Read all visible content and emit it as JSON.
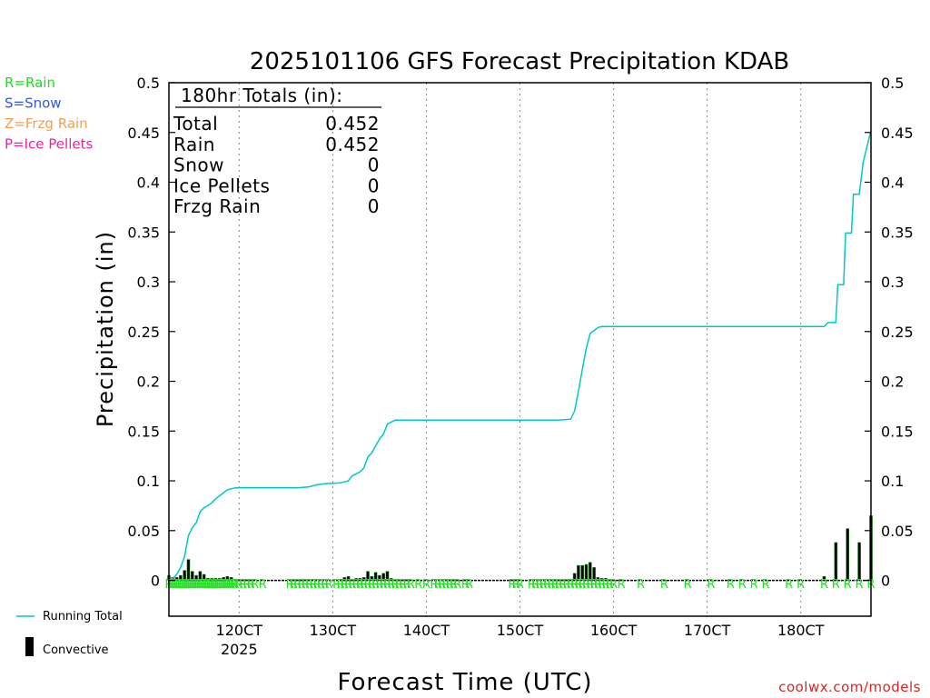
{
  "chart_data": {
    "type": "bar+line",
    "title": "2025101106 GFS Forecast Precipitation KDAB",
    "xlabel": "Forecast Time (UTC)",
    "ylabel": "Precipitation (in)",
    "x_unit": "forecast hours",
    "xlim": [
      0,
      180
    ],
    "ylim": [
      -0.036,
      0.5
    ],
    "y_ticks": [
      "0.5",
      "0.45",
      "0.4",
      "0.35",
      "0.3",
      "0.25",
      "0.2",
      "0.15",
      "0.1",
      "0.05",
      "0"
    ],
    "x_ticks": [
      {
        "hour": 18,
        "label": "120CT"
      },
      {
        "hour": 42,
        "label": "130CT"
      },
      {
        "hour": 66,
        "label": "140CT"
      },
      {
        "hour": 90,
        "label": "150CT"
      },
      {
        "hour": 114,
        "label": "160CT"
      },
      {
        "hour": 138,
        "label": "170CT"
      },
      {
        "hour": 162,
        "label": "180CT"
      }
    ],
    "year_label": "2025",
    "precip_type_legend": [
      {
        "label": "R=Rain",
        "color": "#22dd22"
      },
      {
        "label": "S=Snow",
        "color": "#3355ee"
      },
      {
        "label": "Z=Frzg Rain",
        "color": "#f0a050"
      },
      {
        "label": "P=Ice Pellets",
        "color": "#ee2299"
      }
    ],
    "series_legend": {
      "running_total": "Running Total",
      "convective": "Convective"
    },
    "totals": {
      "title": "180hr Totals (in):",
      "rows": [
        {
          "label": "Total",
          "value": "0.452"
        },
        {
          "label": "Rain",
          "value": "0.452"
        },
        {
          "label": "Snow",
          "value": "0"
        },
        {
          "label": "Ice Pellets",
          "value": "0"
        },
        {
          "label": "Frzg Rain",
          "value": "0"
        }
      ]
    },
    "series": [
      {
        "name": "Running Total",
        "color": "#00c8c8",
        "points": [
          [
            0,
            0
          ],
          [
            1,
            0.002
          ],
          [
            2,
            0.006
          ],
          [
            3,
            0.013
          ],
          [
            4,
            0.024
          ],
          [
            5,
            0.045
          ],
          [
            6,
            0.053
          ],
          [
            7,
            0.058
          ],
          [
            8,
            0.069
          ],
          [
            9,
            0.073
          ],
          [
            10,
            0.075
          ],
          [
            11,
            0.078
          ],
          [
            12,
            0.082
          ],
          [
            13,
            0.085
          ],
          [
            14,
            0.088
          ],
          [
            15,
            0.091
          ],
          [
            16,
            0.092
          ],
          [
            17,
            0.093
          ],
          [
            24,
            0.093
          ],
          [
            33,
            0.093
          ],
          [
            36,
            0.094
          ],
          [
            38,
            0.096
          ],
          [
            40,
            0.097
          ],
          [
            44,
            0.098
          ],
          [
            46,
            0.1
          ],
          [
            47,
            0.105
          ],
          [
            48,
            0.107
          ],
          [
            49,
            0.109
          ],
          [
            50,
            0.113
          ],
          [
            51,
            0.124
          ],
          [
            52,
            0.128
          ],
          [
            53,
            0.135
          ],
          [
            54,
            0.142
          ],
          [
            55,
            0.147
          ],
          [
            56,
            0.157
          ],
          [
            58,
            0.161
          ],
          [
            60,
            0.161
          ],
          [
            70,
            0.161
          ],
          [
            80,
            0.161
          ],
          [
            100,
            0.161
          ],
          [
            103,
            0.162
          ],
          [
            104,
            0.17
          ],
          [
            105,
            0.19
          ],
          [
            106,
            0.212
          ],
          [
            107,
            0.233
          ],
          [
            108,
            0.248
          ],
          [
            109,
            0.251
          ],
          [
            110,
            0.254
          ],
          [
            111,
            0.255
          ],
          [
            114,
            0.255
          ],
          [
            140,
            0.255
          ],
          [
            168,
            0.255
          ],
          [
            169,
            0.259
          ],
          [
            171,
            0.259
          ],
          [
            171.5,
            0.297
          ],
          [
            173,
            0.297
          ],
          [
            173.5,
            0.349
          ],
          [
            175,
            0.349
          ],
          [
            175.5,
            0.388
          ],
          [
            177,
            0.388
          ],
          [
            178,
            0.42
          ],
          [
            180,
            0.452
          ]
        ]
      },
      {
        "name": "Convective",
        "color": "#000000",
        "bar_hour_width": 0.7,
        "bars": [
          [
            0,
            0.005
          ],
          [
            1,
            0.003
          ],
          [
            2,
            0.003
          ],
          [
            3,
            0.005
          ],
          [
            4,
            0.01
          ],
          [
            5,
            0.021
          ],
          [
            6,
            0.009
          ],
          [
            7,
            0.005
          ],
          [
            8,
            0.009
          ],
          [
            9,
            0.006
          ],
          [
            10,
            0.002
          ],
          [
            11,
            0.002
          ],
          [
            12,
            0.002
          ],
          [
            13,
            0.002
          ],
          [
            14,
            0.003
          ],
          [
            15,
            0.004
          ],
          [
            16,
            0.003
          ],
          [
            45,
            0.003
          ],
          [
            46,
            0.004
          ],
          [
            48,
            0.002
          ],
          [
            49,
            0.002
          ],
          [
            50,
            0.003
          ],
          [
            51,
            0.009
          ],
          [
            52,
            0.004
          ],
          [
            53,
            0.008
          ],
          [
            54,
            0.005
          ],
          [
            55,
            0.007
          ],
          [
            56,
            0.009
          ],
          [
            57,
            0.002
          ],
          [
            58,
            0.001
          ],
          [
            104,
            0.007
          ],
          [
            105,
            0.015
          ],
          [
            106,
            0.015
          ],
          [
            107,
            0.016
          ],
          [
            108,
            0.018
          ],
          [
            109,
            0.013
          ],
          [
            110,
            0.003
          ],
          [
            111,
            0.002
          ],
          [
            112,
            0.002
          ],
          [
            168,
            0.004
          ],
          [
            171,
            0.038
          ],
          [
            174,
            0.052
          ],
          [
            177,
            0.038
          ],
          [
            180,
            0.065
          ]
        ]
      }
    ],
    "precip_type_markers": {
      "symbol": "R",
      "hours": [
        0,
        0.5,
        1,
        1.5,
        2,
        2.5,
        3,
        3.5,
        4,
        4.5,
        5,
        5.5,
        6,
        6.5,
        7,
        7.5,
        8,
        8.5,
        9,
        9.5,
        10,
        10.5,
        11,
        11.5,
        12,
        12.5,
        13,
        13.5,
        14,
        14.5,
        15,
        15.5,
        16,
        16.5,
        17,
        18,
        19,
        20,
        21,
        22,
        24,
        31,
        32,
        33,
        34,
        35,
        36,
        37,
        38,
        39,
        40,
        41,
        43,
        44,
        45,
        46,
        47,
        48,
        49,
        50,
        51,
        52,
        53,
        54,
        55,
        56,
        57,
        58,
        59,
        60,
        61,
        62,
        64,
        66,
        68,
        69,
        70,
        71,
        72,
        73,
        74,
        76,
        77,
        88,
        89,
        90,
        93,
        94,
        95,
        96,
        97,
        98,
        99,
        100,
        101,
        102,
        103,
        104,
        105,
        106,
        107,
        108,
        109,
        110,
        111,
        112,
        113,
        114,
        116,
        121,
        127,
        133,
        139,
        144,
        147,
        150,
        153,
        159,
        162,
        168,
        171,
        174,
        177,
        180
      ]
    },
    "credit": "coolwx.com/models"
  }
}
